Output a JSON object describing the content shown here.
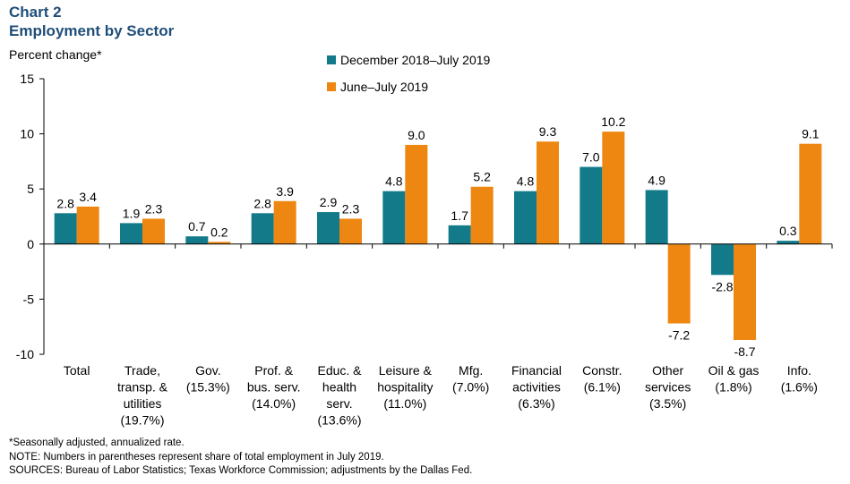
{
  "header": {
    "chart_label": "Chart 2",
    "title": "Employment by Sector"
  },
  "footnotes": {
    "line1": "*Seasonally adjusted, annualized rate.",
    "line2": "NOTE: Numbers in parentheses represent share of total employment in July 2019.",
    "line3": "SOURCES: Bureau of Labor Statistics; Texas Workforce Commission; adjustments by the Dallas Fed."
  },
  "colors": {
    "series1": "#137a8a",
    "series2": "#ee8712",
    "title": "#1f4e79"
  },
  "chart_data": {
    "type": "bar",
    "title": "Employment by Sector",
    "ylabel": "Percent change*",
    "xlabel": "",
    "ylim": [
      -10,
      15
    ],
    "yticks": [
      15,
      10,
      5,
      0,
      -5,
      -10
    ],
    "grid": false,
    "legend_position": "top-center",
    "categories": [
      [
        "Total"
      ],
      [
        "Trade,",
        "transp. &",
        "utilities",
        "(19.7%)"
      ],
      [
        "Gov.",
        "(15.3%)"
      ],
      [
        "Prof. &",
        "bus. serv.",
        "(14.0%)"
      ],
      [
        "Educ. &",
        "health",
        "serv.",
        "(13.6%)"
      ],
      [
        "Leisure &",
        "hospitality",
        "(11.0%)"
      ],
      [
        "Mfg.",
        "(7.0%)"
      ],
      [
        "Financial",
        "activities",
        "(6.3%)"
      ],
      [
        "Constr.",
        "(6.1%)"
      ],
      [
        "Other",
        "services",
        "(3.5%)"
      ],
      [
        "Oil & gas",
        "(1.8%)"
      ],
      [
        "Info.",
        "(1.6%)"
      ]
    ],
    "series": [
      {
        "name": "December 2018–July 2019",
        "values": [
          2.8,
          1.9,
          0.7,
          2.8,
          2.9,
          4.8,
          1.7,
          4.8,
          7.0,
          4.9,
          -2.8,
          0.3
        ],
        "labels": [
          "2.8",
          "1.9",
          "0.7",
          "2.8",
          "2.9",
          "4.8",
          "1.7",
          "4.8",
          "7.0",
          "4.9",
          "-2.8",
          "0.3"
        ]
      },
      {
        "name": "June–July 2019",
        "values": [
          3.4,
          2.3,
          0.2,
          3.9,
          2.3,
          9.0,
          5.2,
          9.3,
          10.2,
          -7.2,
          -8.7,
          9.1
        ],
        "labels": [
          "3.4",
          "2.3",
          "0.2",
          "3.9",
          "2.3",
          "9.0",
          "5.2",
          "9.3",
          "10.2",
          "-7.2",
          "-8.7",
          "9.1"
        ]
      }
    ]
  }
}
